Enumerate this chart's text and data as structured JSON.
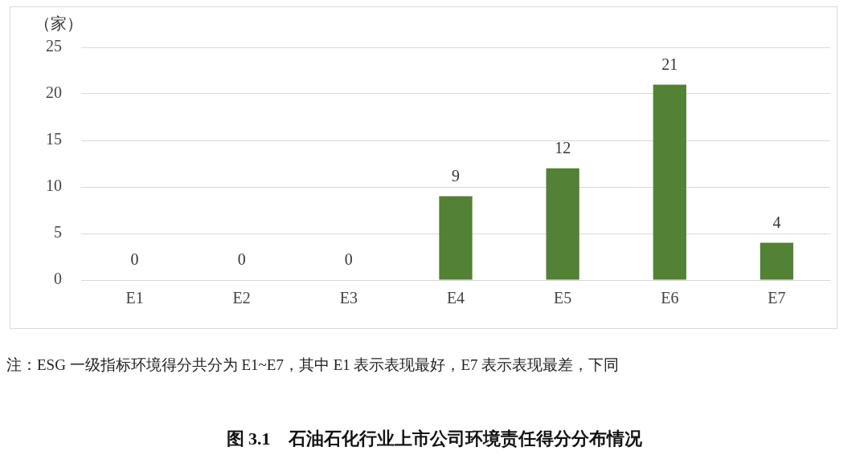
{
  "chart_data": {
    "type": "bar",
    "title": "图 3.1　石油石化行业上市公司环境责任得分分布情况",
    "ylabel": "（家）",
    "categories": [
      "E1",
      "E2",
      "E3",
      "E4",
      "E5",
      "E6",
      "E7"
    ],
    "values": [
      0,
      0,
      0,
      9,
      12,
      21,
      4
    ],
    "color": "#538135",
    "ylim": [
      0,
      25
    ],
    "yticks": [
      0,
      5,
      10,
      15,
      20,
      25
    ],
    "grid": "y",
    "legend": false,
    "data_labels": true,
    "annotations": [
      "注：ESG 一级指标环境得分共分为 E1~E7，其中 E1 表示表现最好，E7 表示表现最差，下同"
    ]
  }
}
